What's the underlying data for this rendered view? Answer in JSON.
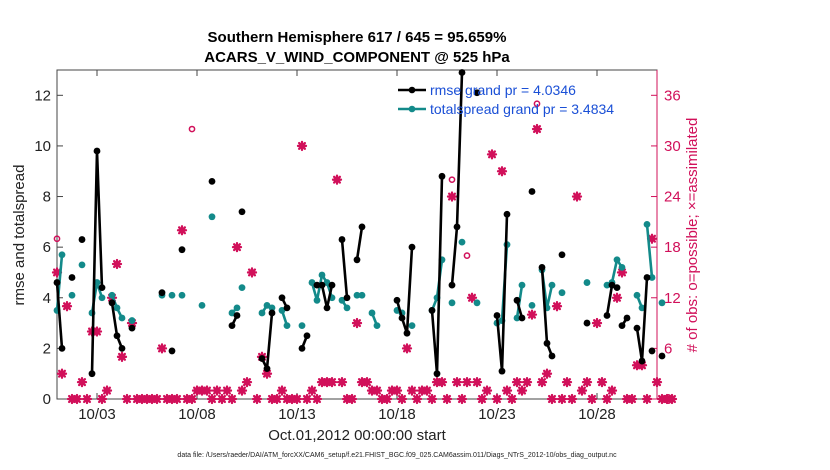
{
  "chart_data": {
    "type": "line",
    "title": "Southern Hemisphere 617 / 645 = 95.659%",
    "subtitle": "ACARS_V_WIND_COMPONENT @ 525 hPa",
    "xlabel": "Oct.01,2012 00:00:00 start",
    "ylabel": "rmse and totalspread",
    "y2label": "# of obs: o=possible; ×=assimilated",
    "x_tick_labels": [
      "10/03",
      "10/08",
      "10/13",
      "10/18",
      "10/23",
      "10/28"
    ],
    "x_ticks": [
      3,
      8,
      13,
      18,
      23,
      28
    ],
    "xlim": [
      1,
      31
    ],
    "ylim": [
      0,
      13
    ],
    "y_ticks": [
      0,
      2,
      4,
      6,
      8,
      10,
      12
    ],
    "y2lim": [
      0,
      39
    ],
    "y2_ticks": [
      0,
      6,
      12,
      18,
      24,
      30,
      36
    ],
    "footer": "data file: /Users/raeder/DAI/ATM_forcXX/CAM6_setup/f.e21.FHIST_BGC.f09_025.CAM6assim.011/Diags_NTrS_2012-10/obs_diag_output.nc",
    "series": [
      {
        "name": "rmse",
        "legend": "rmse grand pr = 4.0346",
        "color": "#000000",
        "segments": [
          [
            [
              1.0,
              4.6
            ],
            [
              1.25,
              2.0
            ]
          ],
          [
            [
              1.75,
              4.8
            ]
          ],
          [
            [
              2.25,
              6.3
            ]
          ],
          [
            [
              2.75,
              1.0
            ],
            [
              3.0,
              9.8
            ],
            [
              3.25,
              4.4
            ]
          ],
          [
            [
              3.75,
              3.8
            ],
            [
              4.0,
              2.5
            ],
            [
              4.25,
              2.0
            ]
          ],
          [
            [
              4.75,
              2.8
            ]
          ],
          [
            [
              6.25,
              4.2
            ]
          ],
          [
            [
              6.75,
              1.9
            ]
          ],
          [
            [
              7.25,
              5.9
            ]
          ],
          [
            [
              8.75,
              8.6
            ]
          ],
          [
            [
              9.75,
              2.9
            ],
            [
              10.0,
              3.3
            ]
          ],
          [
            [
              10.25,
              7.4
            ]
          ],
          [
            [
              11.25,
              1.6
            ],
            [
              11.5,
              1.2
            ],
            [
              11.75,
              3.4
            ]
          ],
          [
            [
              12.25,
              4.0
            ],
            [
              12.5,
              3.6
            ]
          ],
          [
            [
              13.25,
              2.0
            ],
            [
              13.5,
              2.5
            ]
          ],
          [
            [
              14.0,
              4.5
            ],
            [
              14.25,
              4.5
            ],
            [
              14.5,
              3.6
            ],
            [
              14.75,
              4.5
            ]
          ],
          [
            [
              15.25,
              6.3
            ],
            [
              15.5,
              4.0
            ]
          ],
          [
            [
              16.0,
              5.5
            ],
            [
              16.25,
              6.8
            ]
          ],
          [
            [
              18.0,
              3.9
            ],
            [
              18.25,
              3.2
            ],
            [
              18.5,
              2.6
            ],
            [
              18.75,
              6.0
            ]
          ],
          [
            [
              19.75,
              3.5
            ],
            [
              20.0,
              1.0
            ],
            [
              20.25,
              8.8
            ]
          ],
          [
            [
              20.75,
              4.5
            ],
            [
              21.0,
              6.8
            ],
            [
              21.25,
              12.9
            ]
          ],
          [
            [
              22.0,
              12.1
            ]
          ],
          [
            [
              23.0,
              3.3
            ],
            [
              23.25,
              1.1
            ],
            [
              23.5,
              7.3
            ]
          ],
          [
            [
              24.0,
              3.9
            ],
            [
              24.25,
              3.2
            ]
          ],
          [
            [
              24.75,
              8.2
            ]
          ],
          [
            [
              25.25,
              5.2
            ],
            [
              25.5,
              2.2
            ],
            [
              25.75,
              1.7
            ]
          ],
          [
            [
              26.25,
              5.7
            ]
          ],
          [
            [
              27.5,
              3.0
            ]
          ],
          [
            [
              28.5,
              3.3
            ],
            [
              28.75,
              4.5
            ],
            [
              29.0,
              4.4
            ]
          ],
          [
            [
              29.25,
              2.9
            ],
            [
              29.5,
              3.2
            ]
          ],
          [
            [
              30.0,
              2.8
            ],
            [
              30.25,
              1.5
            ],
            [
              30.5,
              4.8
            ]
          ],
          [
            [
              30.75,
              1.9
            ]
          ],
          [
            [
              31.25,
              1.7
            ]
          ]
        ]
      },
      {
        "name": "totalspread",
        "legend": "totalspread grand pr = 3.4834",
        "color": "#138a8a",
        "segments": [
          [
            [
              1.0,
              3.5
            ],
            [
              1.25,
              5.7
            ]
          ],
          [
            [
              1.75,
              4.1
            ]
          ],
          [
            [
              2.25,
              5.3
            ]
          ],
          [
            [
              2.75,
              3.4
            ],
            [
              3.0,
              4.6
            ],
            [
              3.25,
              4.0
            ]
          ],
          [
            [
              3.75,
              4.1
            ],
            [
              4.0,
              3.6
            ],
            [
              4.25,
              3.2
            ]
          ],
          [
            [
              4.75,
              3.1
            ]
          ],
          [
            [
              6.25,
              4.1
            ]
          ],
          [
            [
              6.75,
              4.1
            ]
          ],
          [
            [
              7.25,
              4.1
            ]
          ],
          [
            [
              8.25,
              3.7
            ]
          ],
          [
            [
              8.75,
              7.2
            ]
          ],
          [
            [
              9.75,
              3.4
            ],
            [
              10.0,
              3.6
            ]
          ],
          [
            [
              10.25,
              4.4
            ]
          ],
          [
            [
              11.25,
              3.4
            ],
            [
              11.5,
              3.7
            ],
            [
              11.75,
              3.6
            ]
          ],
          [
            [
              12.25,
              3.5
            ],
            [
              12.5,
              2.9
            ]
          ],
          [
            [
              13.25,
              2.9
            ]
          ],
          [
            [
              13.75,
              4.6
            ],
            [
              14.0,
              3.9
            ],
            [
              14.25,
              4.9
            ],
            [
              14.5,
              4.6
            ],
            [
              14.75,
              4.0
            ]
          ],
          [
            [
              15.25,
              3.9
            ],
            [
              15.5,
              3.6
            ]
          ],
          [
            [
              16.0,
              4.1
            ],
            [
              16.25,
              4.1
            ]
          ],
          [
            [
              16.75,
              3.4
            ],
            [
              17.0,
              2.9
            ]
          ],
          [
            [
              18.0,
              3.5
            ],
            [
              18.25,
              3.4
            ]
          ],
          [
            [
              18.75,
              2.9
            ]
          ],
          [
            [
              19.75,
              3.5
            ],
            [
              20.0,
              4.0
            ],
            [
              20.25,
              5.5
            ]
          ],
          [
            [
              20.75,
              3.8
            ]
          ],
          [
            [
              21.25,
              6.2
            ]
          ],
          [
            [
              22.0,
              3.8
            ]
          ],
          [
            [
              23.0,
              3.0
            ],
            [
              23.25,
              3.1
            ],
            [
              23.5,
              6.1
            ]
          ],
          [
            [
              24.0,
              3.2
            ],
            [
              24.25,
              4.5
            ]
          ],
          [
            [
              24.75,
              3.7
            ]
          ],
          [
            [
              25.25,
              5.1
            ],
            [
              25.5,
              3.6
            ],
            [
              25.75,
              4.5
            ]
          ],
          [
            [
              26.25,
              4.2
            ]
          ],
          [
            [
              27.5,
              4.6
            ]
          ],
          [
            [
              28.5,
              4.5
            ],
            [
              28.75,
              4.6
            ],
            [
              29.0,
              5.5
            ],
            [
              29.25,
              5.2
            ]
          ],
          [
            [
              30.0,
              4.1
            ],
            [
              30.25,
              3.6
            ]
          ],
          [
            [
              30.5,
              6.9
            ],
            [
              30.75,
              4.8
            ]
          ],
          [
            [
              31.25,
              3.8
            ]
          ]
        ]
      }
    ],
    "obs_assimilated": {
      "color": "#d1105a",
      "points": [
        [
          1.0,
          15
        ],
        [
          1.25,
          3
        ],
        [
          1.5,
          11
        ],
        [
          1.75,
          0
        ],
        [
          2.0,
          0
        ],
        [
          2.25,
          2
        ],
        [
          2.5,
          0
        ],
        [
          2.75,
          8
        ],
        [
          3.0,
          8
        ],
        [
          3.25,
          0
        ],
        [
          3.5,
          1
        ],
        [
          3.75,
          12
        ],
        [
          4.0,
          16
        ],
        [
          4.25,
          5
        ],
        [
          4.5,
          0
        ],
        [
          4.75,
          9
        ],
        [
          5.0,
          0
        ],
        [
          5.25,
          0
        ],
        [
          5.5,
          0
        ],
        [
          5.75,
          0
        ],
        [
          6.0,
          0
        ],
        [
          6.25,
          6
        ],
        [
          6.5,
          0
        ],
        [
          6.75,
          0
        ],
        [
          7.0,
          0
        ],
        [
          7.25,
          20
        ],
        [
          7.5,
          0
        ],
        [
          7.75,
          0
        ],
        [
          8.0,
          1
        ],
        [
          8.25,
          1
        ],
        [
          8.5,
          1
        ],
        [
          8.75,
          0
        ],
        [
          9.0,
          1
        ],
        [
          9.25,
          0
        ],
        [
          9.5,
          1
        ],
        [
          9.75,
          0
        ],
        [
          10.0,
          18
        ],
        [
          10.25,
          1
        ],
        [
          10.5,
          2
        ],
        [
          10.75,
          15
        ],
        [
          11.0,
          0
        ],
        [
          11.25,
          5
        ],
        [
          11.5,
          3
        ],
        [
          11.75,
          0
        ],
        [
          12.0,
          0
        ],
        [
          12.25,
          1
        ],
        [
          12.5,
          0
        ],
        [
          12.75,
          0
        ],
        [
          13.0,
          0
        ],
        [
          13.25,
          30
        ],
        [
          13.5,
          0
        ],
        [
          13.75,
          1
        ],
        [
          14.0,
          0
        ],
        [
          14.25,
          2
        ],
        [
          14.5,
          2
        ],
        [
          14.75,
          2
        ],
        [
          15.0,
          26
        ],
        [
          15.25,
          2
        ],
        [
          15.5,
          0
        ],
        [
          15.75,
          0
        ],
        [
          16.0,
          9
        ],
        [
          16.25,
          2
        ],
        [
          16.5,
          2
        ],
        [
          16.75,
          1
        ],
        [
          17.0,
          1
        ],
        [
          17.25,
          0
        ],
        [
          17.5,
          0
        ],
        [
          17.75,
          1
        ],
        [
          18.0,
          1
        ],
        [
          18.25,
          0
        ],
        [
          18.5,
          6
        ],
        [
          18.75,
          1
        ],
        [
          19.0,
          0
        ],
        [
          19.25,
          1
        ],
        [
          19.5,
          1
        ],
        [
          19.75,
          0
        ],
        [
          20.0,
          2
        ],
        [
          20.25,
          2
        ],
        [
          20.5,
          0
        ],
        [
          20.75,
          24
        ],
        [
          21.0,
          2
        ],
        [
          21.25,
          0
        ],
        [
          21.5,
          2
        ],
        [
          21.75,
          12
        ],
        [
          22.0,
          2
        ],
        [
          22.25,
          0
        ],
        [
          22.5,
          1
        ],
        [
          22.75,
          29
        ],
        [
          23.0,
          0
        ],
        [
          23.25,
          27
        ],
        [
          23.5,
          1
        ],
        [
          23.75,
          0
        ],
        [
          24.0,
          2
        ],
        [
          24.25,
          1
        ],
        [
          24.5,
          2
        ],
        [
          24.75,
          10
        ],
        [
          25.0,
          32
        ],
        [
          25.25,
          2
        ],
        [
          25.5,
          3
        ],
        [
          25.75,
          0
        ],
        [
          26.0,
          11
        ],
        [
          26.25,
          0
        ],
        [
          26.5,
          2
        ],
        [
          26.75,
          0
        ],
        [
          27.0,
          24
        ],
        [
          27.25,
          1
        ],
        [
          27.5,
          2
        ],
        [
          27.75,
          0
        ],
        [
          28.0,
          9
        ],
        [
          28.25,
          2
        ],
        [
          28.5,
          0
        ],
        [
          28.75,
          1
        ],
        [
          29.0,
          12
        ],
        [
          29.25,
          15
        ],
        [
          29.5,
          0
        ],
        [
          29.75,
          0
        ],
        [
          30.0,
          4
        ],
        [
          30.25,
          4
        ],
        [
          30.5,
          0
        ],
        [
          30.75,
          19
        ],
        [
          31.0,
          2
        ],
        [
          31.25,
          0
        ],
        [
          31.5,
          0
        ],
        [
          31.75,
          0
        ]
      ]
    },
    "obs_possible": {
      "color": "#d1105a",
      "points": [
        [
          1.0,
          19
        ],
        [
          7.75,
          32
        ],
        [
          20.75,
          26
        ],
        [
          21.5,
          17
        ],
        [
          25.0,
          35
        ]
      ]
    }
  }
}
